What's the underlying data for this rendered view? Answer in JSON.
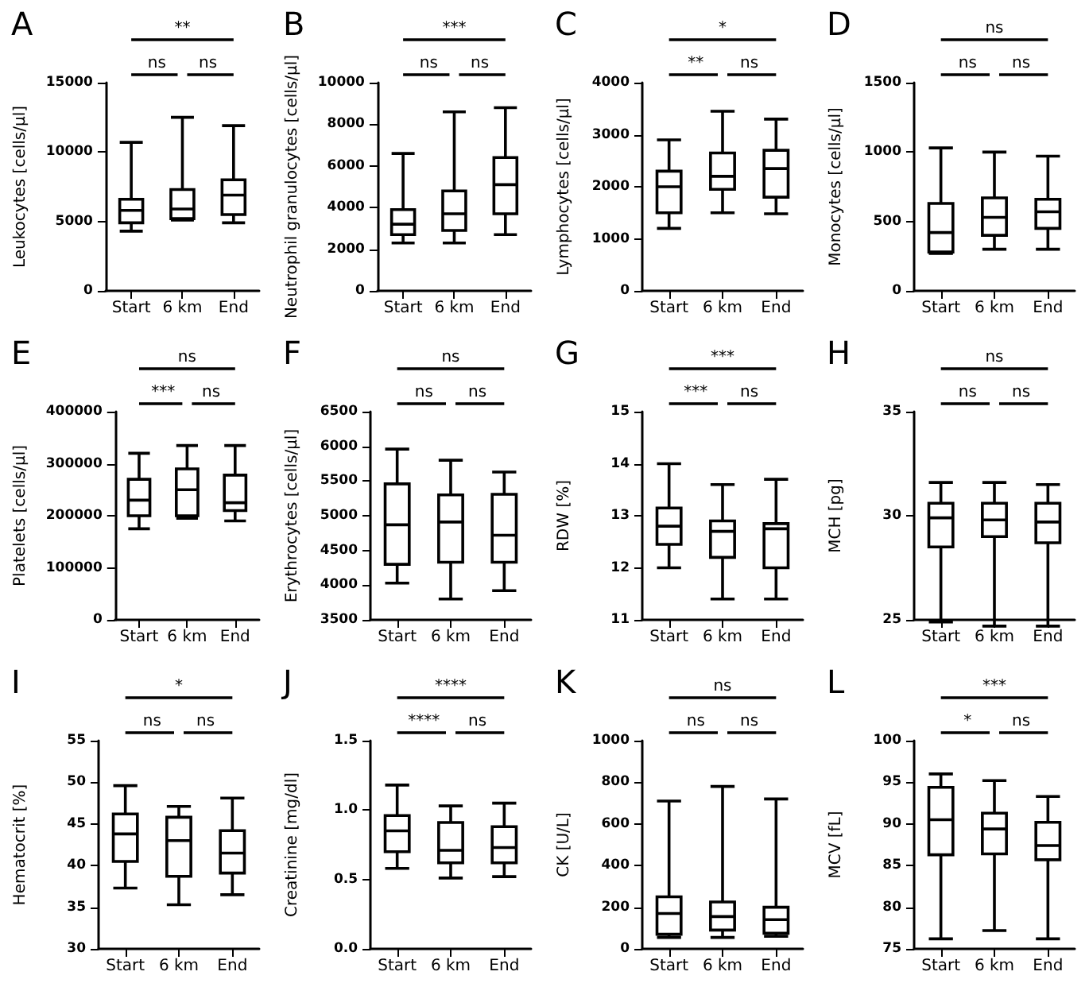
{
  "chart_data": [
    {
      "type": "box",
      "title": "A",
      "ylabel": "Leukocytes [cells/µl]",
      "categories": [
        "Start",
        "6 km",
        "End"
      ],
      "ylim": [
        0,
        15000
      ],
      "yticks": [
        0,
        5000,
        10000,
        15000
      ],
      "annotations": [
        "ns",
        "ns",
        "**"
      ],
      "boxes": [
        {
          "low": 4300,
          "q1": 4900,
          "median": 5800,
          "q3": 6600,
          "high": 10700
        },
        {
          "low": 5100,
          "q1": 5200,
          "median": 5900,
          "q3": 7300,
          "high": 12500
        },
        {
          "low": 4900,
          "q1": 5500,
          "median": 6900,
          "q3": 8000,
          "high": 11900
        }
      ]
    },
    {
      "type": "box",
      "title": "B",
      "ylabel": "Neutrophil granulocytes [cells/µl]",
      "categories": [
        "Start",
        "6 km",
        "End"
      ],
      "ylim": [
        0,
        10000
      ],
      "yticks": [
        0,
        2000,
        4000,
        6000,
        8000,
        10000
      ],
      "annotations": [
        "ns",
        "ns",
        "***"
      ],
      "boxes": [
        {
          "low": 2300,
          "q1": 2700,
          "median": 3200,
          "q3": 3900,
          "high": 6600
        },
        {
          "low": 2300,
          "q1": 2900,
          "median": 3700,
          "q3": 4800,
          "high": 8600
        },
        {
          "low": 2700,
          "q1": 3700,
          "median": 5100,
          "q3": 6400,
          "high": 8800
        }
      ]
    },
    {
      "type": "box",
      "title": "C",
      "ylabel": "Lymphocytes [cells/µl]",
      "categories": [
        "Start",
        "6 km",
        "End"
      ],
      "ylim": [
        0,
        4000
      ],
      "yticks": [
        0,
        1000,
        2000,
        3000,
        4000
      ],
      "annotations": [
        "**",
        "ns",
        "*"
      ],
      "boxes": [
        {
          "low": 1200,
          "q1": 1500,
          "median": 2000,
          "q3": 2300,
          "high": 2900
        },
        {
          "low": 1500,
          "q1": 1950,
          "median": 2200,
          "q3": 2650,
          "high": 3450
        },
        {
          "low": 1480,
          "q1": 1800,
          "median": 2350,
          "q3": 2700,
          "high": 3300
        }
      ]
    },
    {
      "type": "box",
      "title": "D",
      "ylabel": "Monocytes [cells/µl]",
      "categories": [
        "Start",
        "6 km",
        "End"
      ],
      "ylim": [
        0,
        1500
      ],
      "yticks": [
        0,
        500,
        1000,
        1500
      ],
      "annotations": [
        "ns",
        "ns",
        "ns"
      ],
      "boxes": [
        {
          "low": 270,
          "q1": 280,
          "median": 420,
          "q3": 630,
          "high": 1030
        },
        {
          "low": 300,
          "q1": 400,
          "median": 530,
          "q3": 670,
          "high": 1000
        },
        {
          "low": 300,
          "q1": 450,
          "median": 570,
          "q3": 660,
          "high": 970
        }
      ]
    },
    {
      "type": "box",
      "title": "E",
      "ylabel": "Platelets [cells/µl]",
      "categories": [
        "Start",
        "6 km",
        "End"
      ],
      "ylim": [
        0,
        400000
      ],
      "yticks": [
        0,
        100000,
        200000,
        300000,
        400000
      ],
      "annotations": [
        "***",
        "ns",
        "ns"
      ],
      "boxes": [
        {
          "low": 175000,
          "q1": 200000,
          "median": 230000,
          "q3": 270000,
          "high": 320000
        },
        {
          "low": 195000,
          "q1": 200000,
          "median": 250000,
          "q3": 290000,
          "high": 335000
        },
        {
          "low": 190000,
          "q1": 210000,
          "median": 225000,
          "q3": 278000,
          "high": 335000
        }
      ]
    },
    {
      "type": "box",
      "title": "F",
      "ylabel": "Erythrocytes [cells/µl]",
      "categories": [
        "Start",
        "6 km",
        "End"
      ],
      "ylim": [
        3500,
        6500
      ],
      "yticks": [
        3500,
        4000,
        4500,
        5000,
        5500,
        6000,
        6500
      ],
      "annotations": [
        "ns",
        "ns",
        "ns"
      ],
      "boxes": [
        {
          "low": 4030,
          "q1": 4300,
          "median": 4870,
          "q3": 5460,
          "high": 5960
        },
        {
          "low": 3800,
          "q1": 4330,
          "median": 4910,
          "q3": 5300,
          "high": 5800
        },
        {
          "low": 3920,
          "q1": 4330,
          "median": 4720,
          "q3": 5310,
          "high": 5630
        }
      ]
    },
    {
      "type": "box",
      "title": "G",
      "ylabel": "RDW [%]",
      "categories": [
        "Start",
        "6 km",
        "End"
      ],
      "ylim": [
        11,
        15
      ],
      "yticks": [
        11,
        12,
        13,
        14,
        15
      ],
      "annotations": [
        "***",
        "ns",
        "***"
      ],
      "boxes": [
        {
          "low": 12.0,
          "q1": 12.45,
          "median": 12.8,
          "q3": 13.15,
          "high": 14.0
        },
        {
          "low": 11.4,
          "q1": 12.2,
          "median": 12.7,
          "q3": 12.9,
          "high": 13.6
        },
        {
          "low": 11.4,
          "q1": 12.0,
          "median": 12.75,
          "q3": 12.85,
          "high": 13.7
        }
      ]
    },
    {
      "type": "box",
      "title": "H",
      "ylabel": "MCH [pg]",
      "categories": [
        "Start",
        "6 km",
        "End"
      ],
      "ylim": [
        25,
        35
      ],
      "yticks": [
        25,
        30,
        35
      ],
      "annotations": [
        "ns",
        "ns",
        "ns"
      ],
      "boxes": [
        {
          "low": 24.9,
          "q1": 28.5,
          "median": 29.9,
          "q3": 30.6,
          "high": 31.6
        },
        {
          "low": 24.7,
          "q1": 29.0,
          "median": 29.8,
          "q3": 30.6,
          "high": 31.6
        },
        {
          "low": 24.7,
          "q1": 28.7,
          "median": 29.7,
          "q3": 30.6,
          "high": 31.5
        }
      ]
    },
    {
      "type": "box",
      "title": "I",
      "ylabel": "Hematocrit [%]",
      "categories": [
        "Start",
        "6 km",
        "End"
      ],
      "ylim": [
        30,
        55
      ],
      "yticks": [
        30,
        35,
        40,
        45,
        50,
        55
      ],
      "annotations": [
        "ns",
        "ns",
        "*"
      ],
      "boxes": [
        {
          "low": 37.3,
          "q1": 40.5,
          "median": 43.8,
          "q3": 46.2,
          "high": 49.6
        },
        {
          "low": 35.3,
          "q1": 38.7,
          "median": 43.0,
          "q3": 45.8,
          "high": 47.1
        },
        {
          "low": 36.5,
          "q1": 39.1,
          "median": 41.5,
          "q3": 44.2,
          "high": 48.1
        }
      ]
    },
    {
      "type": "box",
      "title": "J",
      "ylabel": "Creatinine [mg/dl]",
      "categories": [
        "Start",
        "6 km",
        "End"
      ],
      "ylim": [
        0,
        1.5
      ],
      "yticks": [
        {
          "value": 0,
          "label": "0.0"
        },
        0.5,
        {
          "value": 1,
          "label": "1.0"
        },
        1.5
      ],
      "annotations": [
        "****",
        "ns",
        "****"
      ],
      "boxes": [
        {
          "low": 0.58,
          "q1": 0.7,
          "median": 0.85,
          "q3": 0.96,
          "high": 1.18
        },
        {
          "low": 0.51,
          "q1": 0.62,
          "median": 0.71,
          "q3": 0.91,
          "high": 1.03
        },
        {
          "low": 0.52,
          "q1": 0.62,
          "median": 0.73,
          "q3": 0.88,
          "high": 1.05
        }
      ]
    },
    {
      "type": "box",
      "title": "K",
      "ylabel": "CK [U/L]",
      "categories": [
        "Start",
        "6 km",
        "End"
      ],
      "ylim": [
        0,
        1000
      ],
      "yticks": [
        0,
        200,
        400,
        600,
        800,
        1000
      ],
      "annotations": [
        "ns",
        "ns",
        "ns"
      ],
      "boxes": [
        {
          "low": 55,
          "q1": 70,
          "median": 170,
          "q3": 250,
          "high": 710
        },
        {
          "low": 55,
          "q1": 90,
          "median": 155,
          "q3": 225,
          "high": 780
        },
        {
          "low": 60,
          "q1": 75,
          "median": 140,
          "q3": 200,
          "high": 720
        }
      ]
    },
    {
      "type": "box",
      "title": "L",
      "ylabel": "MCV [fL]",
      "categories": [
        "Start",
        "6 km",
        "End"
      ],
      "ylim": [
        75,
        100
      ],
      "yticks": [
        75,
        80,
        85,
        90,
        95,
        100
      ],
      "annotations": [
        "*",
        "ns",
        "***"
      ],
      "boxes": [
        {
          "low": 76.2,
          "q1": 86.3,
          "median": 90.5,
          "q3": 94.4,
          "high": 96.0
        },
        {
          "low": 77.2,
          "q1": 86.4,
          "median": 89.4,
          "q3": 91.3,
          "high": 95.2
        },
        {
          "low": 76.2,
          "q1": 85.7,
          "median": 87.4,
          "q3": 90.2,
          "high": 93.3
        }
      ]
    }
  ]
}
